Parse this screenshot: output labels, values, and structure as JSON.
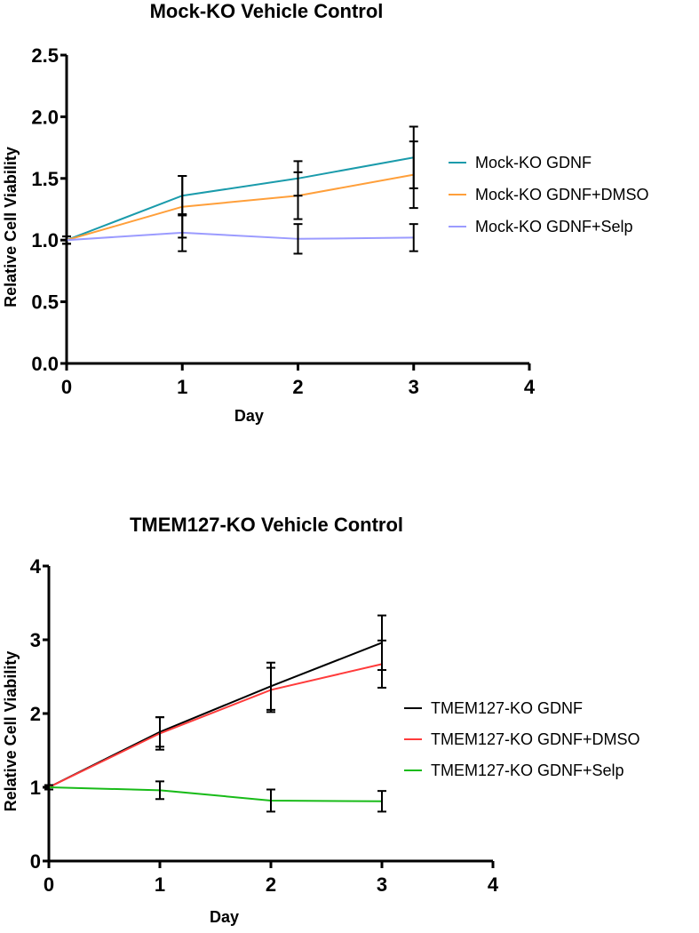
{
  "chart_data": [
    {
      "type": "line",
      "title": "Mock-KO Vehicle Control",
      "xlabel": "Day",
      "ylabel": "Relative Cell Viability",
      "xlim": [
        0,
        4
      ],
      "ylim": [
        0,
        2.5
      ],
      "xticks": [
        "0",
        "1",
        "2",
        "3",
        "4"
      ],
      "yticks": [
        "0.0",
        "0.5",
        "1.0",
        "1.5",
        "2.0",
        "2.5"
      ],
      "legend_position": "right",
      "x": [
        0,
        1,
        2,
        3
      ],
      "series": [
        {
          "name": "Mock-KO GDNF",
          "color": "#1a9bab",
          "values": [
            1.0,
            1.36,
            1.5,
            1.67
          ],
          "errors": [
            0.03,
            0.16,
            0.14,
            0.25
          ]
        },
        {
          "name": "Mock-KO GDNF+DMSO",
          "color": "#ff9f3a",
          "values": [
            1.0,
            1.27,
            1.36,
            1.53
          ],
          "errors": [
            0.03,
            0.25,
            0.19,
            0.27
          ]
        },
        {
          "name": "Mock-KO GDNF+Selp",
          "color": "#9b9bff",
          "values": [
            1.0,
            1.06,
            1.01,
            1.02
          ],
          "errors": [
            0.03,
            0.15,
            0.12,
            0.11
          ]
        }
      ]
    },
    {
      "type": "line",
      "title": "TMEM127-KO Vehicle Control",
      "xlabel": "Day",
      "ylabel": "Relative Cell Viability",
      "xlim": [
        0,
        4
      ],
      "ylim": [
        0,
        4
      ],
      "xticks": [
        "0",
        "1",
        "2",
        "3",
        "4"
      ],
      "yticks": [
        "0",
        "1",
        "2",
        "3",
        "4"
      ],
      "legend_position": "right",
      "x": [
        0,
        1,
        2,
        3
      ],
      "series": [
        {
          "name": "TMEM127-KO GDNF",
          "color": "#000000",
          "values": [
            1.0,
            1.75,
            2.37,
            2.96
          ],
          "errors": [
            0.03,
            0.2,
            0.32,
            0.37
          ]
        },
        {
          "name": "TMEM127-KO GDNF+DMSO",
          "color": "#ff3b3b",
          "values": [
            1.0,
            1.73,
            2.32,
            2.67
          ],
          "errors": [
            0.03,
            0.22,
            0.3,
            0.32
          ]
        },
        {
          "name": "TMEM127-KO GDNF+Selp",
          "color": "#18bb18",
          "values": [
            1.0,
            0.96,
            0.82,
            0.81
          ],
          "errors": [
            0.03,
            0.12,
            0.15,
            0.14
          ]
        }
      ]
    }
  ]
}
